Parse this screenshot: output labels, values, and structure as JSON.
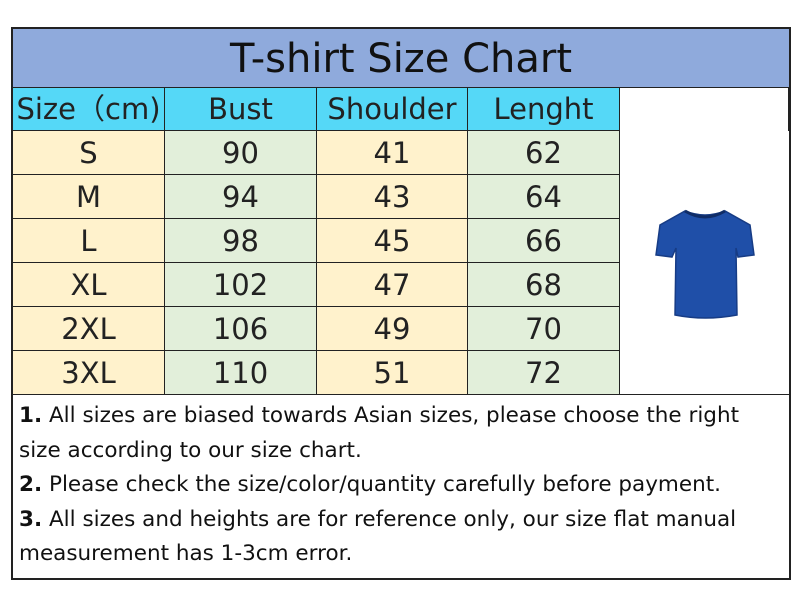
{
  "title": "T-shirt Size Chart",
  "headers": [
    "Size（cm)",
    "Bust",
    "Shoulder",
    "Lenght"
  ],
  "rows": [
    [
      "S",
      "90",
      "41",
      "62"
    ],
    [
      "M",
      "94",
      "43",
      "64"
    ],
    [
      "L",
      "98",
      "45",
      "66"
    ],
    [
      "XL",
      "102",
      "47",
      "68"
    ],
    [
      "2XL",
      "106",
      "49",
      "70"
    ],
    [
      "3XL",
      "110",
      "51",
      "72"
    ]
  ],
  "image": {
    "name": "blue-tshirt",
    "color": "#1f4fa8"
  },
  "notes": [
    {
      "num": "1.",
      "text": " All sizes are biased towards Asian sizes, please choose the right size according to our size chart."
    },
    {
      "num": "2.",
      "text": " Please check the size/color/quantity carefully before payment."
    },
    {
      "num": "3.",
      "text": " All sizes and heights are for reference only, our size flat manual measurement has 1-3cm error."
    }
  ]
}
